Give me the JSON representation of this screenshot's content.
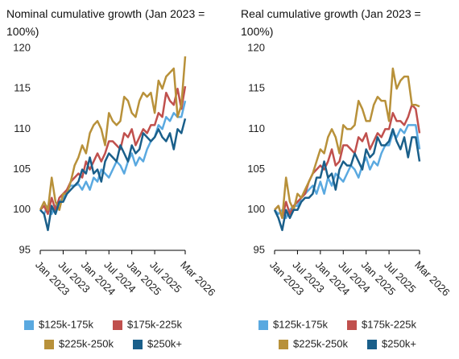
{
  "chart_data": [
    {
      "type": "line",
      "title": "Nominal cumulative growth (Jan 2023 = 100%)",
      "x": [
        "2023-01",
        "2023-02",
        "2023-03",
        "2023-04",
        "2023-05",
        "2023-06",
        "2023-07",
        "2023-08",
        "2023-09",
        "2023-10",
        "2023-11",
        "2023-12",
        "2024-01",
        "2024-02",
        "2024-03",
        "2024-04",
        "2024-05",
        "2024-06",
        "2024-07",
        "2024-08",
        "2024-09",
        "2024-10",
        "2024-11",
        "2024-12",
        "2025-01",
        "2025-02",
        "2025-03",
        "2025-04",
        "2025-05",
        "2025-06",
        "2025-07",
        "2025-08",
        "2025-09",
        "2025-10",
        "2025-11",
        "2025-12",
        "2026-01",
        "2026-02",
        "2026-03"
      ],
      "xlim": [
        "2023-01",
        "2026-03"
      ],
      "xticks": [
        {
          "value": "2023-01",
          "label": "Jan 2023"
        },
        {
          "value": "2023-07",
          "label": "Jul 2023"
        },
        {
          "value": "2024-01",
          "label": "Jan 2024"
        },
        {
          "value": "2024-07",
          "label": "Jul 2024"
        },
        {
          "value": "2025-01",
          "label": "Jan 2025"
        },
        {
          "value": "2025-07",
          "label": "Jul 2025"
        },
        {
          "value": "2026-03",
          "label": "Mar 2026"
        }
      ],
      "ylim": [
        95,
        120
      ],
      "yticks": [
        95,
        100,
        105,
        110,
        115,
        120
      ],
      "series": [
        {
          "name": "$125k-175k",
          "color": "#5aa9e0",
          "values": [
            100,
            99.5,
            100.5,
            99.5,
            100.5,
            101,
            101.5,
            102.5,
            103,
            103,
            103.2,
            102.5,
            103.5,
            102.5,
            104,
            103.5,
            105,
            104.5,
            104,
            105,
            106,
            105.5,
            104.5,
            106,
            107,
            105.5,
            106.5,
            106,
            107.5,
            108.5,
            109,
            110.5,
            110,
            111.5,
            111,
            112,
            111.5,
            111.5,
            113.5
          ]
        },
        {
          "name": "$175k-225k",
          "color": "#c0504d",
          "values": [
            100,
            100.5,
            99.5,
            101.5,
            100,
            101.5,
            102,
            102.5,
            103.5,
            104,
            104.5,
            104,
            106,
            105,
            106,
            107,
            106,
            107,
            108.5,
            108.5,
            108,
            107.5,
            109.5,
            109,
            110,
            108,
            109,
            110,
            109.5,
            110.5,
            110.5,
            112,
            111.5,
            114.5,
            113.5,
            113,
            115,
            112.5,
            115.3
          ]
        },
        {
          "name": "$225k-250k",
          "color": "#b8913a",
          "values": [
            100,
            101,
            100,
            104,
            101,
            100,
            102,
            102,
            103.5,
            105.5,
            106.5,
            108,
            107,
            109.5,
            110.5,
            111,
            110,
            108,
            112,
            111,
            110.5,
            111,
            114,
            113.5,
            112,
            111.5,
            113.5,
            114.5,
            114,
            114.5,
            112,
            116,
            115,
            116.5,
            117,
            117.5,
            111.5,
            113,
            119
          ]
        },
        {
          "name": "$250k+",
          "color": "#1a5f8a",
          "values": [
            100,
            99.5,
            97.5,
            100.5,
            99.5,
            101,
            101,
            102,
            102.5,
            103,
            103.5,
            105,
            104.5,
            106.5,
            104.5,
            105,
            103.5,
            106,
            107,
            106.5,
            106,
            108,
            107,
            106,
            108,
            107,
            107.5,
            109.5,
            109,
            108.5,
            109,
            110,
            109,
            108.5,
            109.5,
            107.5,
            110,
            109.5,
            111.3
          ]
        }
      ]
    },
    {
      "type": "line",
      "title": "Real cumulative growth (Jan 2023 = 100%)",
      "x": [
        "2023-01",
        "2023-02",
        "2023-03",
        "2023-04",
        "2023-05",
        "2023-06",
        "2023-07",
        "2023-08",
        "2023-09",
        "2023-10",
        "2023-11",
        "2023-12",
        "2024-01",
        "2024-02",
        "2024-03",
        "2024-04",
        "2024-05",
        "2024-06",
        "2024-07",
        "2024-08",
        "2024-09",
        "2024-10",
        "2024-11",
        "2024-12",
        "2025-01",
        "2025-02",
        "2025-03",
        "2025-04",
        "2025-05",
        "2025-06",
        "2025-07",
        "2025-08",
        "2025-09",
        "2025-10",
        "2025-11",
        "2025-12",
        "2026-01",
        "2026-02",
        "2026-03"
      ],
      "xlim": [
        "2023-01",
        "2026-03"
      ],
      "xticks": [
        {
          "value": "2023-01",
          "label": "Jan 2023"
        },
        {
          "value": "2023-07",
          "label": "Jul 2023"
        },
        {
          "value": "2024-01",
          "label": "Jan 2024"
        },
        {
          "value": "2024-07",
          "label": "Jul 2024"
        },
        {
          "value": "2025-01",
          "label": "Jan 2025"
        },
        {
          "value": "2025-07",
          "label": "Jul 2025"
        },
        {
          "value": "2026-03",
          "label": "Mar 2026"
        }
      ],
      "ylim": [
        95,
        120
      ],
      "yticks": [
        95,
        100,
        105,
        110,
        115,
        120
      ],
      "series": [
        {
          "name": "$125k-175k",
          "color": "#5aa9e0",
          "values": [
            100,
            99.5,
            100,
            99,
            100,
            100.5,
            100.5,
            101.5,
            102,
            102.5,
            103,
            102,
            103.5,
            102,
            104,
            103,
            104.5,
            104,
            103.5,
            104.5,
            105.5,
            105,
            104,
            105.5,
            106.5,
            105,
            106,
            105.5,
            107,
            108,
            108,
            109.5,
            109,
            110,
            109.5,
            110.5,
            110.5,
            110.5,
            107.5
          ]
        },
        {
          "name": "$175k-225k",
          "color": "#c0504d",
          "values": [
            100,
            100.5,
            99,
            101,
            99.5,
            100.5,
            101,
            101.5,
            102,
            103.5,
            104.5,
            105,
            105.5,
            105,
            106,
            107.5,
            105.5,
            106,
            108,
            108,
            107.5,
            107,
            109,
            108.5,
            109.5,
            107.5,
            108.5,
            109.5,
            109,
            110,
            110,
            112,
            111,
            111,
            110.5,
            111.5,
            113,
            112.5,
            109.5
          ]
        },
        {
          "name": "$225k-250k",
          "color": "#b8913a",
          "values": [
            100,
            100.5,
            99,
            104,
            101,
            100,
            102,
            101.5,
            102.5,
            103.5,
            104.5,
            106,
            107.5,
            107,
            109,
            110,
            109,
            107,
            110.5,
            110,
            110,
            110.5,
            113.5,
            112.5,
            111,
            111,
            113,
            114,
            113.5,
            113.5,
            111,
            117.5,
            115,
            116,
            116.5,
            116.5,
            113,
            113,
            112.8
          ]
        },
        {
          "name": "$250k+",
          "color": "#1a5f8a",
          "values": [
            100,
            99,
            97.5,
            100,
            99,
            100,
            100,
            101,
            101.5,
            101.5,
            102,
            104,
            104,
            106,
            104,
            104.5,
            102.5,
            105,
            106,
            105.5,
            105.5,
            107,
            106,
            105,
            107.5,
            106.5,
            107,
            109,
            108,
            108,
            108.5,
            110,
            108.5,
            107.5,
            109,
            106.5,
            109,
            109,
            106
          ]
        }
      ]
    }
  ]
}
